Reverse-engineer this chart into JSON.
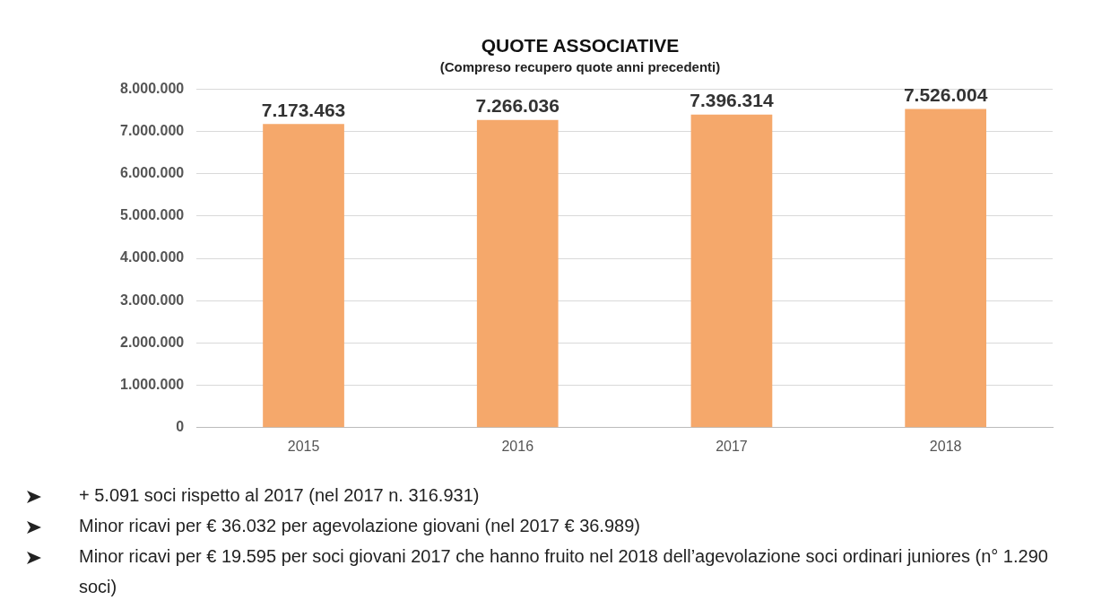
{
  "chart_data": {
    "type": "bar",
    "title": "QUOTE ASSOCIATIVE",
    "subtitle": "(Compreso recupero quote anni precedenti)",
    "categories": [
      "2015",
      "2016",
      "2017",
      "2018"
    ],
    "values": [
      7173463,
      7266036,
      7396314,
      7526004
    ],
    "value_labels": [
      "7.173.463",
      "7.266.036",
      "7.396.314",
      "7.526.004"
    ],
    "color": "#f5a86b",
    "ylim": [
      0,
      8000000
    ],
    "yticks": [
      0,
      {
        "value": 1000000,
        "label": "1.000.000"
      },
      {
        "value": 2000000,
        "label": "2.000.000"
      },
      {
        "value": 3000000,
        "label": "3.000.000"
      },
      {
        "value": 4000000,
        "label": "4.000.000"
      },
      {
        "value": 5000000,
        "label": "5.000.000"
      },
      {
        "value": 6000000,
        "label": "6.000.000"
      },
      {
        "value": 7000000,
        "label": "7.000.000"
      },
      {
        "value": 8000000,
        "label": "8.000.000"
      }
    ],
    "grid": "y",
    "legend": false,
    "annotations": [
      "+ 5.091 soci rispetto al 2017  (nel 2017  n. 316.931)",
      "Minor ricavi per € 36.032 per agevolazione giovani (nel 2017 € 36.989)",
      "Minor ricavi  per € 19.595  per soci giovani 2017 che hanno fruito nel 2018 dell’agevolazione soci ordinari juniores (n°  1.290 soci)"
    ]
  }
}
